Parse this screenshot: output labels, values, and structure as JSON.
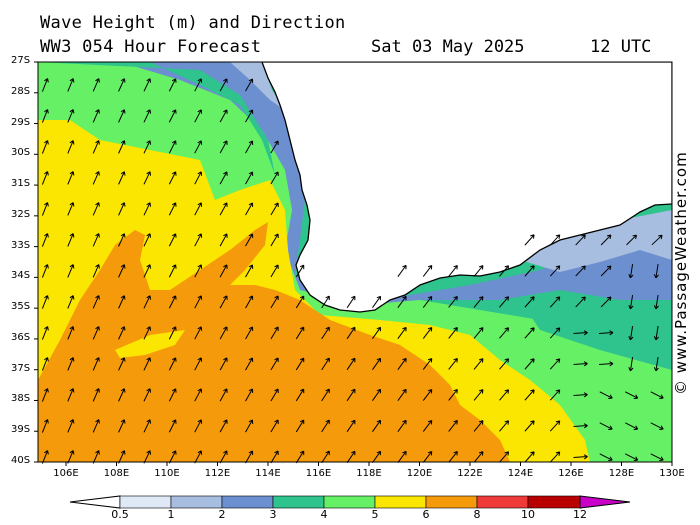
{
  "header": {
    "title_line1": "Wave Height (m) and Direction",
    "title_line2": "WW3 054 Hour Forecast",
    "date": "Sat 03 May 2025",
    "time": "12 UTC"
  },
  "credit": "© www.PassageWeather.com",
  "map": {
    "lat_labels": [
      "27S",
      "28S",
      "29S",
      "30S",
      "31S",
      "32S",
      "33S",
      "34S",
      "35S",
      "36S",
      "37S",
      "38S",
      "39S",
      "40S"
    ],
    "lon_labels": [
      "106E",
      "108E",
      "110E",
      "112E",
      "114E",
      "116E",
      "118E",
      "120E",
      "122E",
      "124E",
      "126E",
      "128E",
      "130E"
    ],
    "land_color": "#ffffff"
  },
  "legend": {
    "labels": [
      "0.5",
      "1",
      "2",
      "3",
      "4",
      "5",
      "6",
      "8",
      "10",
      "12"
    ],
    "colors": [
      "#dfe8f5",
      "#a8bee0",
      "#6c8fd0",
      "#2fc38e",
      "#66f066",
      "#fae600",
      "#f59a0a",
      "#ef3a3a",
      "#b80000",
      "#c800c8"
    ]
  }
}
